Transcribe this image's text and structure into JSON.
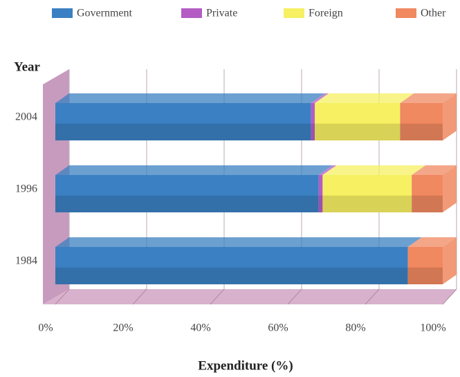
{
  "chart_data": {
    "type": "stacked-bar-horizontal-3d",
    "y_label": "Year",
    "x_label": "Expenditure (%)",
    "categories": [
      "2004",
      "1996",
      "1984"
    ],
    "series": [
      {
        "name": "Government",
        "color": "#3b80c2",
        "values": [
          66,
          68,
          91
        ]
      },
      {
        "name": "Private",
        "color": "#b45cc4",
        "values": [
          1,
          1,
          0
        ]
      },
      {
        "name": "Foreign",
        "color": "#f6f062",
        "values": [
          22,
          23,
          0
        ]
      },
      {
        "name": "Other",
        "color": "#f08860",
        "values": [
          11,
          8,
          9
        ]
      }
    ],
    "xlim": [
      0,
      100
    ],
    "xticks": [
      {
        "value": 0,
        "label": "0%"
      },
      {
        "value": 20,
        "label": "20%"
      },
      {
        "value": 40,
        "label": "40%"
      },
      {
        "value": 60,
        "label": "60%"
      },
      {
        "value": 80,
        "label": "80%"
      },
      {
        "value": 100,
        "label": "100%"
      }
    ],
    "grid": true,
    "legend": "top"
  }
}
